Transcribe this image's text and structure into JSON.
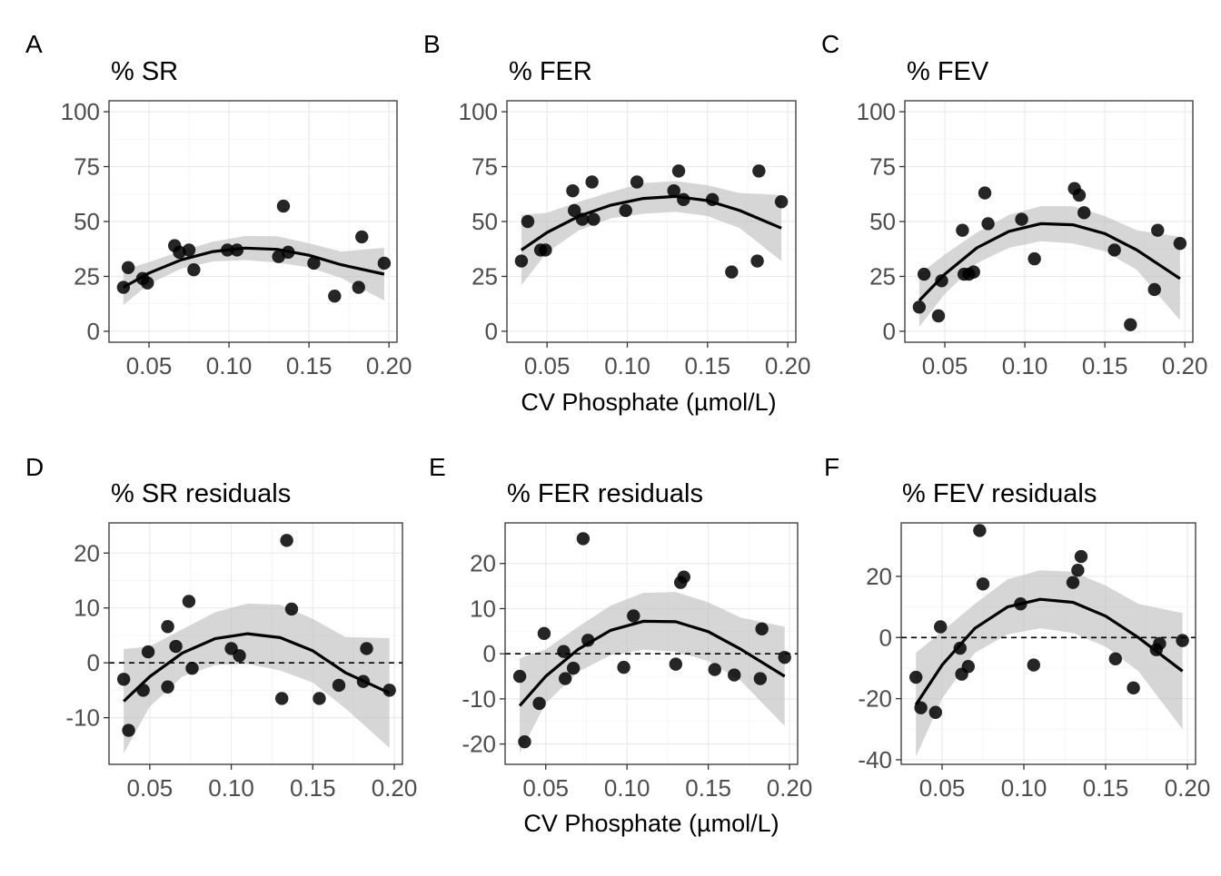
{
  "figure": {
    "xlabel_top": "CV Phosphate (µmol/L)",
    "xlabel_bottom": "CV Phosphate (µmol/L)"
  },
  "chart_data": [
    {
      "type": "scatter",
      "letter": "A",
      "title": "% SR",
      "xlim": [
        0.025,
        0.205
      ],
      "ylim": [
        -5,
        105
      ],
      "xticks": [
        0.05,
        0.1,
        0.15,
        0.2
      ],
      "xtick_labels": [
        "0.05",
        "0.10",
        "0.15",
        "0.20"
      ],
      "yticks": [
        0,
        25,
        50,
        75,
        100
      ],
      "ytick_labels": [
        "0",
        "25",
        "50",
        "75",
        "100"
      ],
      "hline": null,
      "points": [
        {
          "x": 0.034,
          "y": 20
        },
        {
          "x": 0.037,
          "y": 29
        },
        {
          "x": 0.046,
          "y": 24
        },
        {
          "x": 0.049,
          "y": 22
        },
        {
          "x": 0.066,
          "y": 39
        },
        {
          "x": 0.069,
          "y": 36
        },
        {
          "x": 0.075,
          "y": 37
        },
        {
          "x": 0.078,
          "y": 28
        },
        {
          "x": 0.099,
          "y": 37
        },
        {
          "x": 0.105,
          "y": 37
        },
        {
          "x": 0.131,
          "y": 34
        },
        {
          "x": 0.134,
          "y": 57
        },
        {
          "x": 0.137,
          "y": 36
        },
        {
          "x": 0.153,
          "y": 31
        },
        {
          "x": 0.166,
          "y": 16
        },
        {
          "x": 0.181,
          "y": 20
        },
        {
          "x": 0.183,
          "y": 43
        },
        {
          "x": 0.197,
          "y": 31
        }
      ],
      "fit": [
        {
          "x": 0.034,
          "y": 20,
          "lo": 12,
          "hi": 28
        },
        {
          "x": 0.05,
          "y": 26.5,
          "lo": 21.5,
          "hi": 31.5
        },
        {
          "x": 0.07,
          "y": 32.5,
          "lo": 28.5,
          "hi": 36.5
        },
        {
          "x": 0.09,
          "y": 36.3,
          "lo": 31.8,
          "hi": 40.8
        },
        {
          "x": 0.11,
          "y": 37.9,
          "lo": 32.4,
          "hi": 43.4
        },
        {
          "x": 0.13,
          "y": 37.3,
          "lo": 31.3,
          "hi": 43.3
        },
        {
          "x": 0.15,
          "y": 34.6,
          "lo": 29.1,
          "hi": 40.1
        },
        {
          "x": 0.17,
          "y": 30.3,
          "lo": 24.3,
          "hi": 36.3
        },
        {
          "x": 0.197,
          "y": 26,
          "lo": 14,
          "hi": 38
        }
      ]
    },
    {
      "type": "scatter",
      "letter": "B",
      "title": "% FER",
      "xlim": [
        0.025,
        0.205
      ],
      "ylim": [
        -5,
        105
      ],
      "xticks": [
        0.05,
        0.1,
        0.15,
        0.2
      ],
      "xtick_labels": [
        "0.05",
        "0.10",
        "0.15",
        "0.20"
      ],
      "yticks": [
        0,
        25,
        50,
        75,
        100
      ],
      "ytick_labels": [
        "0",
        "25",
        "50",
        "75",
        "100"
      ],
      "hline": null,
      "points": [
        {
          "x": 0.034,
          "y": 32
        },
        {
          "x": 0.038,
          "y": 50
        },
        {
          "x": 0.046,
          "y": 37
        },
        {
          "x": 0.049,
          "y": 37
        },
        {
          "x": 0.066,
          "y": 64
        },
        {
          "x": 0.067,
          "y": 55
        },
        {
          "x": 0.072,
          "y": 51
        },
        {
          "x": 0.079,
          "y": 51
        },
        {
          "x": 0.078,
          "y": 68
        },
        {
          "x": 0.099,
          "y": 55
        },
        {
          "x": 0.106,
          "y": 68
        },
        {
          "x": 0.129,
          "y": 64
        },
        {
          "x": 0.132,
          "y": 73
        },
        {
          "x": 0.135,
          "y": 60
        },
        {
          "x": 0.153,
          "y": 60
        },
        {
          "x": 0.165,
          "y": 27
        },
        {
          "x": 0.181,
          "y": 32
        },
        {
          "x": 0.182,
          "y": 73
        },
        {
          "x": 0.196,
          "y": 59
        }
      ],
      "fit": [
        {
          "x": 0.034,
          "y": 37,
          "lo": 21,
          "hi": 53
        },
        {
          "x": 0.05,
          "y": 45,
          "lo": 36,
          "hi": 54
        },
        {
          "x": 0.07,
          "y": 52.5,
          "lo": 46,
          "hi": 59
        },
        {
          "x": 0.09,
          "y": 57.5,
          "lo": 51.5,
          "hi": 63.5
        },
        {
          "x": 0.11,
          "y": 60.5,
          "lo": 53.5,
          "hi": 67.5
        },
        {
          "x": 0.13,
          "y": 61.4,
          "lo": 54.4,
          "hi": 68.4
        },
        {
          "x": 0.15,
          "y": 59.5,
          "lo": 52.5,
          "hi": 66.5
        },
        {
          "x": 0.17,
          "y": 55,
          "lo": 47,
          "hi": 63
        },
        {
          "x": 0.196,
          "y": 47,
          "lo": 32,
          "hi": 62
        }
      ]
    },
    {
      "type": "scatter",
      "letter": "C",
      "title": "% FEV",
      "xlim": [
        0.025,
        0.205
      ],
      "ylim": [
        -5,
        105
      ],
      "xticks": [
        0.05,
        0.1,
        0.15,
        0.2
      ],
      "xtick_labels": [
        "0.05",
        "0.10",
        "0.15",
        "0.20"
      ],
      "yticks": [
        0,
        25,
        50,
        75,
        100
      ],
      "ytick_labels": [
        "0",
        "25",
        "50",
        "75",
        "100"
      ],
      "hline": null,
      "points": [
        {
          "x": 0.034,
          "y": 11
        },
        {
          "x": 0.037,
          "y": 26
        },
        {
          "x": 0.046,
          "y": 7
        },
        {
          "x": 0.048,
          "y": 23
        },
        {
          "x": 0.061,
          "y": 46
        },
        {
          "x": 0.062,
          "y": 26
        },
        {
          "x": 0.065,
          "y": 26
        },
        {
          "x": 0.068,
          "y": 27
        },
        {
          "x": 0.075,
          "y": 63
        },
        {
          "x": 0.077,
          "y": 49
        },
        {
          "x": 0.098,
          "y": 51
        },
        {
          "x": 0.106,
          "y": 33
        },
        {
          "x": 0.131,
          "y": 65
        },
        {
          "x": 0.134,
          "y": 62
        },
        {
          "x": 0.137,
          "y": 54
        },
        {
          "x": 0.156,
          "y": 37
        },
        {
          "x": 0.166,
          "y": 3
        },
        {
          "x": 0.181,
          "y": 19
        },
        {
          "x": 0.183,
          "y": 46
        },
        {
          "x": 0.197,
          "y": 40
        }
      ],
      "fit": [
        {
          "x": 0.034,
          "y": 14,
          "lo": 2,
          "hi": 26
        },
        {
          "x": 0.05,
          "y": 26,
          "lo": 17,
          "hi": 35
        },
        {
          "x": 0.07,
          "y": 38,
          "lo": 31,
          "hi": 45
        },
        {
          "x": 0.09,
          "y": 45.5,
          "lo": 38,
          "hi": 53
        },
        {
          "x": 0.11,
          "y": 49,
          "lo": 41,
          "hi": 57
        },
        {
          "x": 0.13,
          "y": 48.5,
          "lo": 40,
          "hi": 57
        },
        {
          "x": 0.15,
          "y": 44.5,
          "lo": 36.5,
          "hi": 52.5
        },
        {
          "x": 0.17,
          "y": 37,
          "lo": 28,
          "hi": 46
        },
        {
          "x": 0.197,
          "y": 24,
          "lo": 5,
          "hi": 43
        }
      ]
    },
    {
      "type": "scatter",
      "letter": "D",
      "title": "% SR residuals",
      "xlim": [
        0.025,
        0.205
      ],
      "ylim": [
        -18.5,
        25.5
      ],
      "xticks": [
        0.05,
        0.1,
        0.15,
        0.2
      ],
      "xtick_labels": [
        "0.05",
        "0.10",
        "0.15",
        "0.20"
      ],
      "yticks": [
        -10,
        0,
        10,
        20
      ],
      "ytick_labels": [
        "-10",
        "0",
        "10",
        "20"
      ],
      "hline": 0,
      "points": [
        {
          "x": 0.034,
          "y": -3
        },
        {
          "x": 0.037,
          "y": -12.3
        },
        {
          "x": 0.046,
          "y": -5
        },
        {
          "x": 0.049,
          "y": 2
        },
        {
          "x": 0.061,
          "y": 6.6
        },
        {
          "x": 0.061,
          "y": -4.4
        },
        {
          "x": 0.066,
          "y": 3
        },
        {
          "x": 0.074,
          "y": 11.2
        },
        {
          "x": 0.076,
          "y": -1
        },
        {
          "x": 0.1,
          "y": 2.6
        },
        {
          "x": 0.105,
          "y": 1.3
        },
        {
          "x": 0.131,
          "y": -6.5
        },
        {
          "x": 0.134,
          "y": 22.3
        },
        {
          "x": 0.137,
          "y": 9.8
        },
        {
          "x": 0.154,
          "y": -6.5
        },
        {
          "x": 0.166,
          "y": -4.1
        },
        {
          "x": 0.181,
          "y": -3.4
        },
        {
          "x": 0.183,
          "y": 2.6
        },
        {
          "x": 0.197,
          "y": -5
        }
      ],
      "fit": [
        {
          "x": 0.034,
          "y": -7,
          "lo": -16.5,
          "hi": 2.5
        },
        {
          "x": 0.05,
          "y": -2.5,
          "lo": -8,
          "hi": 3
        },
        {
          "x": 0.07,
          "y": 1.8,
          "lo": -2.5,
          "hi": 6.1
        },
        {
          "x": 0.09,
          "y": 4.4,
          "lo": -0.4,
          "hi": 9.2
        },
        {
          "x": 0.11,
          "y": 5.3,
          "lo": -0.2,
          "hi": 10.8
        },
        {
          "x": 0.13,
          "y": 4.6,
          "lo": -1.4,
          "hi": 10.6
        },
        {
          "x": 0.15,
          "y": 2.2,
          "lo": -3.6,
          "hi": 8
        },
        {
          "x": 0.17,
          "y": -1.8,
          "lo": -8.3,
          "hi": 4.7
        },
        {
          "x": 0.197,
          "y": -5.5,
          "lo": -15.5,
          "hi": 4.5
        }
      ]
    },
    {
      "type": "scatter",
      "letter": "E",
      "title": "% FER residuals",
      "xlim": [
        0.025,
        0.205
      ],
      "ylim": [
        -24.5,
        29
      ],
      "xticks": [
        0.05,
        0.1,
        0.15,
        0.2
      ],
      "xtick_labels": [
        "0.05",
        "0.10",
        "0.15",
        "0.20"
      ],
      "yticks": [
        -20,
        -10,
        0,
        10,
        20
      ],
      "ytick_labels": [
        "-20",
        "-10",
        "0",
        "10",
        "20"
      ],
      "hline": 0,
      "points": [
        {
          "x": 0.034,
          "y": -5
        },
        {
          "x": 0.037,
          "y": -19.5
        },
        {
          "x": 0.046,
          "y": -11
        },
        {
          "x": 0.049,
          "y": 4.5
        },
        {
          "x": 0.061,
          "y": 0.5
        },
        {
          "x": 0.062,
          "y": -5.5
        },
        {
          "x": 0.067,
          "y": -3.2
        },
        {
          "x": 0.073,
          "y": 25.5
        },
        {
          "x": 0.076,
          "y": 3
        },
        {
          "x": 0.098,
          "y": -3
        },
        {
          "x": 0.104,
          "y": 8.4
        },
        {
          "x": 0.13,
          "y": -2.3
        },
        {
          "x": 0.133,
          "y": 15.8
        },
        {
          "x": 0.135,
          "y": 17
        },
        {
          "x": 0.154,
          "y": -3.5
        },
        {
          "x": 0.166,
          "y": -4.7
        },
        {
          "x": 0.182,
          "y": -5.5
        },
        {
          "x": 0.183,
          "y": 5.5
        },
        {
          "x": 0.197,
          "y": -0.8
        }
      ],
      "fit": [
        {
          "x": 0.034,
          "y": -11.5,
          "lo": -22,
          "hi": -1
        },
        {
          "x": 0.05,
          "y": -5,
          "lo": -11,
          "hi": 1
        },
        {
          "x": 0.07,
          "y": 1,
          "lo": -4,
          "hi": 6
        },
        {
          "x": 0.09,
          "y": 5.2,
          "lo": -0.3,
          "hi": 10.7
        },
        {
          "x": 0.11,
          "y": 7.2,
          "lo": 0.9,
          "hi": 13.5
        },
        {
          "x": 0.13,
          "y": 7.1,
          "lo": 0.5,
          "hi": 13.7
        },
        {
          "x": 0.15,
          "y": 4.9,
          "lo": -1.6,
          "hi": 11.4
        },
        {
          "x": 0.17,
          "y": 1,
          "lo": -6,
          "hi": 8
        },
        {
          "x": 0.197,
          "y": -5,
          "lo": -16,
          "hi": 6
        }
      ]
    },
    {
      "type": "scatter",
      "letter": "F",
      "title": "% FEV residuals",
      "xlim": [
        0.025,
        0.205
      ],
      "ylim": [
        -41.5,
        37.5
      ],
      "xticks": [
        0.05,
        0.1,
        0.15,
        0.2
      ],
      "xtick_labels": [
        "0.05",
        "0.10",
        "0.15",
        "0.20"
      ],
      "yticks": [
        -40,
        -20,
        0,
        20
      ],
      "ytick_labels": [
        "-40",
        "-20",
        "0",
        "20"
      ],
      "hline": 0,
      "points": [
        {
          "x": 0.034,
          "y": -13
        },
        {
          "x": 0.037,
          "y": -23
        },
        {
          "x": 0.046,
          "y": -24.5
        },
        {
          "x": 0.049,
          "y": 3.5
        },
        {
          "x": 0.061,
          "y": -3.5
        },
        {
          "x": 0.062,
          "y": -12
        },
        {
          "x": 0.066,
          "y": -9.5
        },
        {
          "x": 0.073,
          "y": 35
        },
        {
          "x": 0.075,
          "y": 17.5
        },
        {
          "x": 0.098,
          "y": 11
        },
        {
          "x": 0.106,
          "y": -9
        },
        {
          "x": 0.13,
          "y": 18
        },
        {
          "x": 0.133,
          "y": 22
        },
        {
          "x": 0.135,
          "y": 26.5
        },
        {
          "x": 0.156,
          "y": -7
        },
        {
          "x": 0.167,
          "y": -16.5
        },
        {
          "x": 0.181,
          "y": -4
        },
        {
          "x": 0.183,
          "y": -2
        },
        {
          "x": 0.197,
          "y": -1
        }
      ],
      "fit": [
        {
          "x": 0.034,
          "y": -22,
          "lo": -39,
          "hi": -5
        },
        {
          "x": 0.05,
          "y": -9,
          "lo": -20,
          "hi": 2
        },
        {
          "x": 0.07,
          "y": 3,
          "lo": -5,
          "hi": 11
        },
        {
          "x": 0.09,
          "y": 10,
          "lo": 1,
          "hi": 19
        },
        {
          "x": 0.11,
          "y": 12.5,
          "lo": 3,
          "hi": 22
        },
        {
          "x": 0.13,
          "y": 11.5,
          "lo": 1.5,
          "hi": 21.5
        },
        {
          "x": 0.15,
          "y": 7,
          "lo": -3,
          "hi": 17
        },
        {
          "x": 0.17,
          "y": 0,
          "lo": -11,
          "hi": 11
        },
        {
          "x": 0.197,
          "y": -11,
          "lo": -30,
          "hi": 8
        }
      ]
    }
  ]
}
